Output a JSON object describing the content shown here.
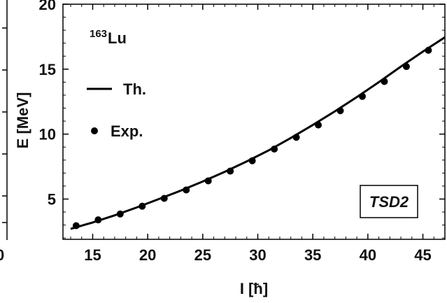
{
  "chart_data": {
    "type": "line",
    "xlabel": "I [ħ]",
    "ylabel": "E [MeV]",
    "xlim": [
      12.3,
      47
    ],
    "ylim": [
      1.9,
      20
    ],
    "x_ticks": [
      "15",
      "20",
      "25",
      "30",
      "35",
      "40",
      "45"
    ],
    "y_ticks": [
      "5",
      "10",
      "15",
      "20"
    ],
    "nucleus": {
      "mass": "163",
      "element": "Lu"
    },
    "band_label": "TSD2",
    "legend": {
      "placement": "top-left",
      "line_label": "Th.",
      "points_label": "Exp."
    },
    "series": [
      {
        "name": "Exp.",
        "style": "points",
        "x": [
          13.5,
          15.5,
          17.5,
          19.5,
          21.5,
          23.5,
          25.5,
          27.5,
          29.5,
          31.5,
          33.5,
          35.5,
          37.5,
          39.5,
          41.5,
          43.5,
          45.5
        ],
        "y": [
          2.95,
          3.4,
          3.85,
          4.45,
          5.05,
          5.7,
          6.4,
          7.15,
          7.95,
          8.85,
          9.75,
          10.7,
          11.8,
          12.9,
          14.05,
          15.2,
          16.45
        ]
      },
      {
        "name": "Th.",
        "style": "line",
        "x": [
          13,
          15,
          17,
          19,
          21,
          23,
          25,
          27,
          29,
          31,
          33,
          35,
          37,
          39,
          41,
          43,
          45,
          47
        ],
        "y": [
          2.7,
          3.2,
          3.75,
          4.35,
          5.0,
          5.65,
          6.35,
          7.1,
          7.9,
          8.75,
          9.7,
          10.7,
          11.75,
          12.85,
          14.0,
          15.2,
          16.35,
          17.45
        ]
      }
    ],
    "colors": {
      "line": "#000000",
      "points": "#000000",
      "frame": "#000000"
    }
  }
}
